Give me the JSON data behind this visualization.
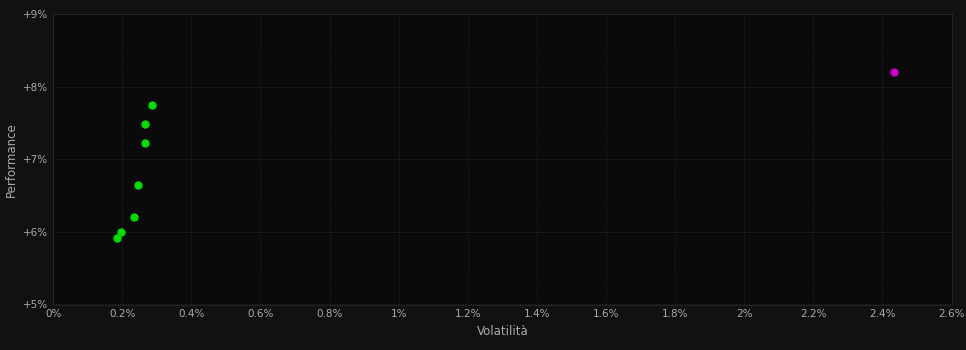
{
  "background_color": "#111111",
  "plot_bg_color": "#0a0a0a",
  "grid_color": "#2a2a2a",
  "text_color": "#aaaaaa",
  "xlabel": "Volatilità",
  "ylabel": "Performance",
  "xlim": [
    0.0,
    0.026
  ],
  "ylim": [
    0.05,
    0.09
  ],
  "xtick_values": [
    0.0,
    0.002,
    0.004,
    0.006,
    0.008,
    0.01,
    0.012,
    0.014,
    0.016,
    0.018,
    0.02,
    0.022,
    0.024,
    0.026
  ],
  "ytick_values": [
    0.05,
    0.06,
    0.07,
    0.08,
    0.09
  ],
  "green_points": [
    [
      0.00285,
      0.0775
    ],
    [
      0.00265,
      0.0748
    ],
    [
      0.00265,
      0.0722
    ],
    [
      0.00245,
      0.0665
    ],
    [
      0.00235,
      0.062
    ],
    [
      0.00195,
      0.06
    ],
    [
      0.00185,
      0.0592
    ]
  ],
  "magenta_point": [
    0.02435,
    0.082
  ],
  "green_color": "#00dd00",
  "magenta_color": "#cc00cc",
  "marker_size": 5
}
